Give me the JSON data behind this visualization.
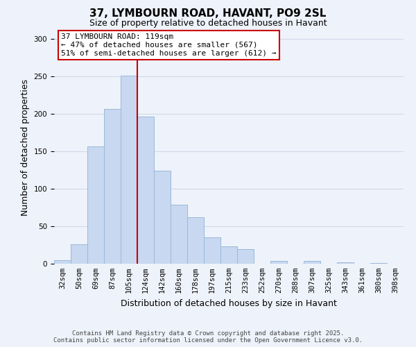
{
  "title": "37, LYMBOURN ROAD, HAVANT, PO9 2SL",
  "subtitle": "Size of property relative to detached houses in Havant",
  "xlabel": "Distribution of detached houses by size in Havant",
  "ylabel": "Number of detached properties",
  "bar_labels": [
    "32sqm",
    "50sqm",
    "69sqm",
    "87sqm",
    "105sqm",
    "124sqm",
    "142sqm",
    "160sqm",
    "178sqm",
    "197sqm",
    "215sqm",
    "233sqm",
    "252sqm",
    "270sqm",
    "288sqm",
    "307sqm",
    "325sqm",
    "343sqm",
    "361sqm",
    "380sqm",
    "398sqm"
  ],
  "bar_values": [
    5,
    26,
    156,
    206,
    251,
    196,
    124,
    79,
    62,
    35,
    23,
    19,
    0,
    4,
    0,
    4,
    0,
    2,
    0,
    1,
    0
  ],
  "bar_color": "#c8d8f0",
  "bar_edge_color": "#9ab8d8",
  "vline_x": 4.5,
  "vline_color": "#cc0000",
  "ylim": [
    0,
    310
  ],
  "yticks": [
    0,
    50,
    100,
    150,
    200,
    250,
    300
  ],
  "annotation_line1": "37 LYMBOURN ROAD: 119sqm",
  "annotation_line2": "← 47% of detached houses are smaller (567)",
  "annotation_line3": "51% of semi-detached houses are larger (612) →",
  "footnote1": "Contains HM Land Registry data © Crown copyright and database right 2025.",
  "footnote2": "Contains public sector information licensed under the Open Government Licence v3.0.",
  "bg_color": "#eef2fa",
  "grid_color": "#d0d8e8",
  "title_fontsize": 11,
  "subtitle_fontsize": 9,
  "axis_label_fontsize": 9,
  "tick_fontsize": 7.5,
  "footnote_fontsize": 6.5
}
